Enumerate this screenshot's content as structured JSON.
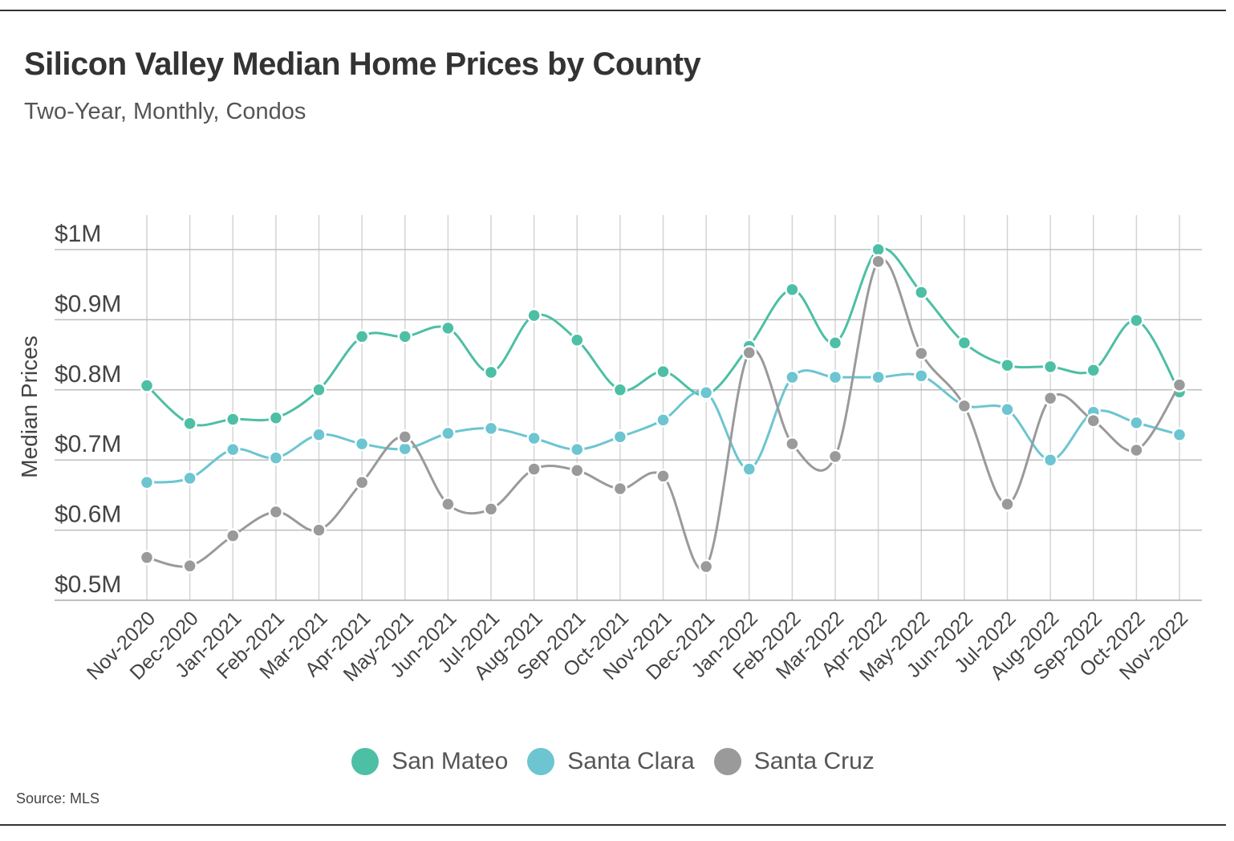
{
  "title": "Silicon Valley Median Home Prices by County",
  "subtitle": "Two-Year, Monthly, Condos",
  "source": "Source:  MLS",
  "chart_data": {
    "type": "line",
    "title": "Silicon Valley Median Home Prices by County",
    "subtitle": "Two-Year, Monthly, Condos",
    "xlabel": "",
    "ylabel": "Median Prices",
    "ylim": [
      500000,
      1000000
    ],
    "yticks": [
      500000,
      600000,
      700000,
      800000,
      900000,
      1000000
    ],
    "ytick_labels": [
      "$0.5M",
      "$0.6M",
      "$0.7M",
      "$0.8M",
      "$0.9M",
      "$1M"
    ],
    "grid": true,
    "legend_position": "bottom",
    "categories": [
      "Nov-2020",
      "Dec-2020",
      "Jan-2021",
      "Feb-2021",
      "Mar-2021",
      "Apr-2021",
      "May-2021",
      "Jun-2021",
      "Jul-2021",
      "Aug-2021",
      "Sep-2021",
      "Oct-2021",
      "Nov-2021",
      "Dec-2021",
      "Jan-2022",
      "Feb-2022",
      "Mar-2022",
      "Apr-2022",
      "May-2022",
      "Jun-2022",
      "Jul-2022",
      "Aug-2022",
      "Sep-2022",
      "Oct-2022",
      "Nov-2022"
    ],
    "series": [
      {
        "name": "San Mateo",
        "color": "#4dbfa4",
        "values": [
          806000,
          752000,
          758000,
          760000,
          800000,
          876000,
          876000,
          888000,
          825000,
          906000,
          871000,
          800000,
          826000,
          793000,
          862000,
          943000,
          867000,
          1000000,
          939000,
          867000,
          835000,
          833000,
          828000,
          899000,
          797000
        ]
      },
      {
        "name": "Santa Clara",
        "color": "#6cc5d1",
        "values": [
          668000,
          674000,
          715000,
          703000,
          736000,
          723000,
          716000,
          738000,
          745000,
          731000,
          715000,
          733000,
          757000,
          796000,
          687000,
          818000,
          818000,
          818000,
          820000,
          778000,
          772000,
          700000,
          768000,
          753000,
          736000
        ]
      },
      {
        "name": "Santa Cruz",
        "color": "#9a9a9a",
        "values": [
          561000,
          549000,
          592000,
          626000,
          600000,
          668000,
          733000,
          637000,
          630000,
          687000,
          685000,
          659000,
          677000,
          548000,
          853000,
          723000,
          705000,
          983000,
          852000,
          777000,
          637000,
          788000,
          756000,
          714000,
          807000
        ]
      }
    ]
  }
}
